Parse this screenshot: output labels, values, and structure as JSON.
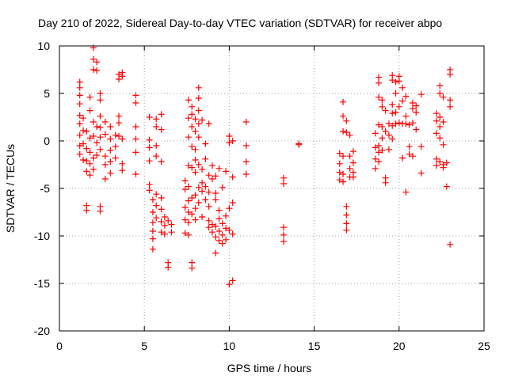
{
  "chart_data": {
    "type": "scatter",
    "title": "Day 210 of 2022, Sidereal Day-to-day VTEC variation (SDTVAR) for receiver abpo",
    "xlabel": "GPS time / hours",
    "ylabel": "SDTVAR / TECUs",
    "xlim": [
      0,
      25
    ],
    "ylim": [
      -20,
      10
    ],
    "xticks": [
      0,
      5,
      10,
      15,
      20,
      25
    ],
    "yticks": [
      -20,
      -15,
      -10,
      -5,
      0,
      5,
      10
    ],
    "grid": true,
    "marker": "plus",
    "series_color": "#ff0000",
    "clusters": [
      {
        "x": 1.2,
        "y": [
          6.2,
          5.6,
          4.8,
          3.9,
          2.7,
          1.8,
          0.6,
          -0.5,
          -1.4
        ]
      },
      {
        "x": 1.4,
        "y": [
          2.4,
          1.1,
          -0.3,
          -2.0
        ]
      },
      {
        "x": 1.6,
        "y": [
          1.0,
          -0.8,
          -2.1,
          -3.2,
          -6.8,
          -7.3
        ]
      },
      {
        "x": 1.8,
        "y": [
          4.6,
          3.2,
          0.3,
          -1.2,
          -2.4,
          -3.6
        ]
      },
      {
        "x": 2.0,
        "y": [
          9.8,
          8.6,
          7.5,
          2.0,
          0.5,
          -1.8,
          -3.0
        ]
      },
      {
        "x": 2.2,
        "y": [
          8.3,
          7.4,
          1.5,
          -0.2,
          -1.5
        ]
      },
      {
        "x": 2.4,
        "y": [
          5.0,
          4.3,
          2.6,
          1.4,
          0.4,
          -0.9,
          -6.9,
          -7.4
        ]
      },
      {
        "x": 2.7,
        "y": [
          2.0,
          0.7,
          -1.6,
          -2.5,
          -4.0
        ]
      },
      {
        "x": 3.0,
        "y": [
          1.5,
          0.2,
          -1.0,
          -2.2,
          -3.4
        ]
      },
      {
        "x": 3.3,
        "y": [
          0.6,
          -0.6,
          -1.8
        ]
      },
      {
        "x": 3.5,
        "y": [
          7.0,
          6.5,
          2.6,
          1.9,
          0.5
        ]
      },
      {
        "x": 3.7,
        "y": [
          7.2,
          6.8,
          0.2,
          -2.4,
          -3.1
        ]
      },
      {
        "x": 4.5,
        "y": [
          4.8,
          4.0,
          1.5,
          0.2,
          -1.2,
          -3.5
        ]
      },
      {
        "x": 5.3,
        "y": [
          2.5,
          0.1,
          -0.7,
          -2.1,
          -4.6,
          -5.2
        ]
      },
      {
        "x": 5.5,
        "y": [
          -6.2,
          -7.5,
          -8.6,
          -9.5,
          -10.3,
          -11.4
        ]
      },
      {
        "x": 5.7,
        "y": [
          2.3,
          1.5,
          -0.5,
          -1.6,
          -5.6,
          -6.8,
          -8.1
        ]
      },
      {
        "x": 6.0,
        "y": [
          2.8,
          1.2,
          -2.2,
          -6.0,
          -7.2,
          -8.5,
          -9.6
        ]
      },
      {
        "x": 6.2,
        "y": [
          -8.0,
          -8.9,
          -9.8
        ]
      },
      {
        "x": 6.4,
        "y": [
          -8.4,
          -12.8,
          -13.3
        ]
      },
      {
        "x": 6.6,
        "y": [
          -8.8,
          -9.6
        ]
      },
      {
        "x": 7.4,
        "y": [
          -4.2,
          -5.1,
          -7.0,
          -8.3,
          -9.7
        ]
      },
      {
        "x": 7.6,
        "y": [
          4.3,
          2.4,
          0.4,
          -2.6,
          -4.8,
          -6.3,
          -7.5,
          -8.6,
          -9.9
        ]
      },
      {
        "x": 7.8,
        "y": [
          3.6,
          2.8,
          1.5,
          -0.6,
          -2.8,
          -6.0,
          -7.7,
          -12.8,
          -13.4
        ]
      },
      {
        "x": 8.0,
        "y": [
          2.3,
          1.0,
          -0.9,
          -2.0,
          -3.3,
          -5.7,
          -7.1,
          -8.3
        ]
      },
      {
        "x": 8.2,
        "y": [
          5.6,
          4.5,
          3.2,
          1.8,
          0.4,
          -2.5,
          -4.9,
          -6.5
        ]
      },
      {
        "x": 8.4,
        "y": [
          2.2,
          -3.0,
          -4.4,
          -5.3,
          -8.0
        ]
      },
      {
        "x": 8.6,
        "y": [
          -0.3,
          -1.9,
          -4.8,
          -6.2
        ]
      },
      {
        "x": 8.8,
        "y": [
          1.8,
          -3.6,
          -5.4,
          -6.9,
          -8.4,
          -9.1
        ]
      },
      {
        "x": 9.0,
        "y": [
          -2.6,
          -4.0,
          -8.8,
          -9.6
        ]
      },
      {
        "x": 9.2,
        "y": [
          -3.7,
          -5.5,
          -6.2,
          -9.0,
          -10.1,
          -11.8
        ]
      },
      {
        "x": 9.4,
        "y": [
          -2.9,
          -7.3,
          -8.2,
          -9.5,
          -10.5
        ]
      },
      {
        "x": 9.6,
        "y": [
          -4.9,
          -8.7,
          -9.9,
          -10.8
        ]
      },
      {
        "x": 9.8,
        "y": [
          -3.2,
          -7.9,
          -9.2,
          -10.4
        ]
      },
      {
        "x": 10.0,
        "y": [
          0.5,
          -0.2,
          -7.1,
          -9.4,
          -15.1
        ]
      },
      {
        "x": 10.2,
        "y": [
          0.0,
          -3.8,
          -6.5,
          -9.8,
          -14.7
        ]
      },
      {
        "x": 11.0,
        "y": [
          2.0,
          -0.5,
          -2.2,
          -3.5
        ]
      },
      {
        "x": 13.2,
        "y": [
          -3.9,
          -4.5,
          -9.1,
          -9.9,
          -10.6
        ]
      },
      {
        "x": 14.1,
        "y": [
          -0.3,
          -0.4
        ]
      },
      {
        "x": 16.5,
        "y": [
          -1.3,
          -2.4,
          -3.3,
          -4.1
        ]
      },
      {
        "x": 16.7,
        "y": [
          4.1,
          2.6,
          1.0,
          -1.6,
          -3.5,
          -4.3
        ]
      },
      {
        "x": 16.9,
        "y": [
          2.1,
          0.9,
          -6.9,
          -7.8,
          -8.7,
          -9.4
        ]
      },
      {
        "x": 17.1,
        "y": [
          0.6,
          -1.6,
          -2.9,
          -3.8
        ]
      },
      {
        "x": 17.3,
        "y": [
          -1.1,
          -2.3,
          -3.3,
          -3.8
        ]
      },
      {
        "x": 18.6,
        "y": [
          0.8,
          -0.7,
          -1.9,
          -2.9
        ]
      },
      {
        "x": 18.8,
        "y": [
          6.7,
          6.1,
          4.6,
          1.7,
          -0.5,
          -1.2,
          -2.2
        ]
      },
      {
        "x": 19.0,
        "y": [
          4.3,
          3.6,
          1.5,
          0.3,
          -1.0
        ]
      },
      {
        "x": 19.2,
        "y": [
          3.2,
          1.0,
          -3.9,
          -4.4
        ]
      },
      {
        "x": 19.4,
        "y": [
          1.8,
          0.6,
          -0.9
        ]
      },
      {
        "x": 19.6,
        "y": [
          6.9,
          6.4,
          3.8,
          2.9,
          1.6,
          0.2
        ]
      },
      {
        "x": 19.8,
        "y": [
          6.2,
          5.0,
          3.0,
          1.8
        ]
      },
      {
        "x": 20.0,
        "y": [
          6.8,
          6.3,
          3.6,
          1.9
        ]
      },
      {
        "x": 20.2,
        "y": [
          5.6,
          4.2,
          1.8,
          -1.8
        ]
      },
      {
        "x": 20.4,
        "y": [
          4.7,
          2.6,
          1.8,
          -5.4
        ]
      },
      {
        "x": 20.6,
        "y": [
          1.7,
          -0.6,
          -1.4
        ]
      },
      {
        "x": 20.8,
        "y": [
          4.0,
          3.4,
          1.9,
          -1.6
        ]
      },
      {
        "x": 21.0,
        "y": [
          3.7,
          3.0,
          1.2
        ]
      },
      {
        "x": 21.3,
        "y": [
          4.9,
          -0.6,
          -3.4
        ]
      },
      {
        "x": 22.2,
        "y": [
          2.9,
          2.1,
          0.8,
          -1.9,
          -2.6
        ]
      },
      {
        "x": 22.4,
        "y": [
          5.8,
          5.0,
          2.5,
          1.5,
          0.3,
          -2.2
        ]
      },
      {
        "x": 22.6,
        "y": [
          4.6,
          2.0,
          -0.4,
          -2.5,
          -2.8
        ]
      },
      {
        "x": 22.8,
        "y": [
          -2.3,
          -4.8
        ]
      },
      {
        "x": 23.0,
        "y": [
          7.5,
          7.0,
          4.3,
          3.6,
          -10.9
        ]
      }
    ]
  }
}
